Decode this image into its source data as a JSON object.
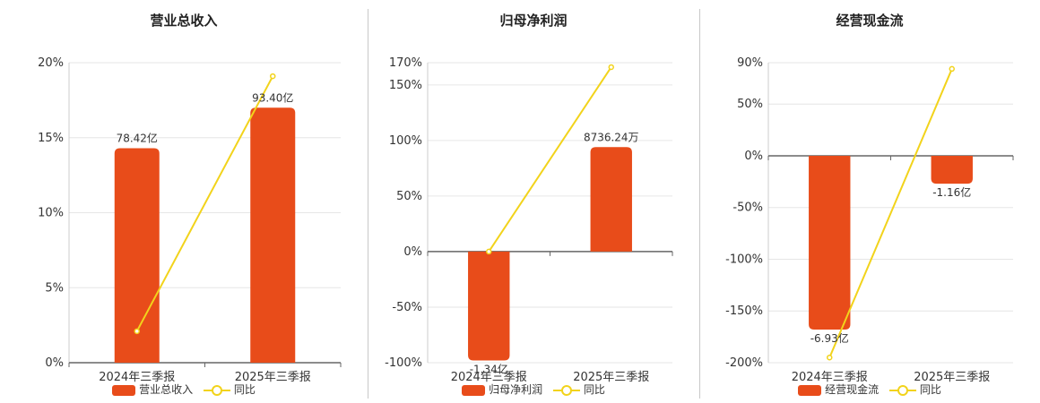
{
  "colors": {
    "bar": "#E84C1A",
    "line": "#F2D31B",
    "grid": "#e6e6e6",
    "axis": "#666666"
  },
  "chart_data": [
    {
      "type": "bar",
      "title": "营业总收入",
      "categories": [
        "2024年三季报",
        "2025年三季报"
      ],
      "series": [
        {
          "name": "营业总收入",
          "type": "bar",
          "values": [
            14.3,
            17.0
          ],
          "labels": [
            "78.42亿",
            "93.40亿"
          ]
        },
        {
          "name": "同比",
          "type": "line",
          "values": [
            2.1,
            19.1
          ]
        }
      ],
      "ylim": [
        0,
        20
      ],
      "yticks": [
        0,
        5,
        10,
        15,
        20
      ],
      "ytick_labels": [
        "0%",
        "5%",
        "10%",
        "15%",
        "20%"
      ],
      "legend": "bottom"
    },
    {
      "type": "bar",
      "title": "归母净利润",
      "categories": [
        "2024年三季报",
        "2025年三季报"
      ],
      "series": [
        {
          "name": "归母净利润",
          "type": "bar",
          "values": [
            -98,
            94
          ],
          "labels": [
            "-1.34亿",
            "8736.24万"
          ]
        },
        {
          "name": "同比",
          "type": "line",
          "values": [
            0,
            166
          ]
        }
      ],
      "ylim": [
        -100,
        170
      ],
      "yticks": [
        -100,
        -50,
        0,
        50,
        100,
        150,
        170
      ],
      "ytick_labels": [
        "-100%",
        "-50%",
        "0%",
        "50%",
        "100%",
        "150%",
        "170%"
      ],
      "legend": "bottom"
    },
    {
      "type": "bar",
      "title": "经营现金流",
      "categories": [
        "2024年三季报",
        "2025年三季报"
      ],
      "series": [
        {
          "name": "经营现金流",
          "type": "bar",
          "values": [
            -168,
            -27
          ],
          "labels": [
            "-6.93亿",
            "-1.16亿"
          ]
        },
        {
          "name": "同比",
          "type": "line",
          "values": [
            -195,
            84
          ]
        }
      ],
      "ylim": [
        -200,
        90
      ],
      "yticks": [
        -200,
        -150,
        -100,
        -50,
        0,
        50,
        90
      ],
      "ytick_labels": [
        "-200%",
        "-150%",
        "-100%",
        "-50%",
        "0%",
        "50%",
        "90%"
      ],
      "legend": "bottom"
    }
  ]
}
